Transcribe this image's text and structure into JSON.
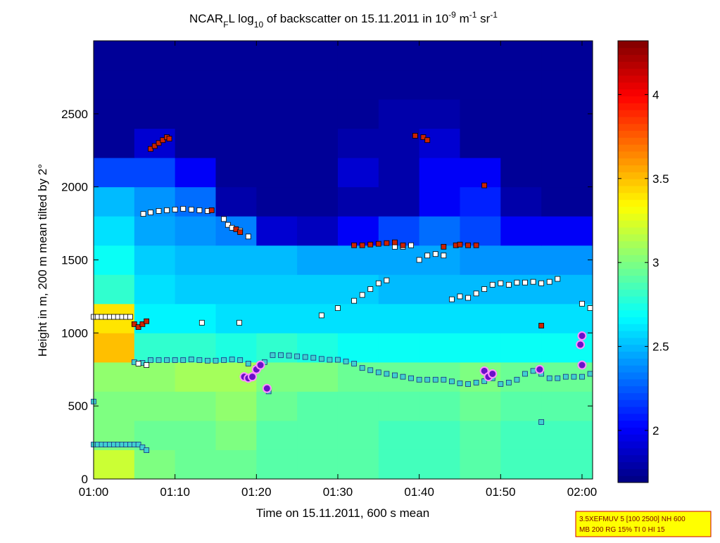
{
  "chart_data": {
    "type": "heatmap",
    "title": [
      "NCAR",
      "F",
      "L log",
      "10",
      " of backscatter on 15.11.2011 in 10",
      "-9",
      " m",
      "-1",
      " sr",
      "-1"
    ],
    "xlabel": "Time on 15.11.2011, 600 s mean",
    "ylabel": "Height in m, 200 m mean tilted by 2°",
    "xlim": [
      0,
      61.3
    ],
    "xticks": [
      {
        "value": 0,
        "label": "01:00"
      },
      {
        "value": 10,
        "label": "01:10"
      },
      {
        "value": 20,
        "label": "01:20"
      },
      {
        "value": 30,
        "label": "01:30"
      },
      {
        "value": 40,
        "label": "01:40"
      },
      {
        "value": 50,
        "label": "01:50"
      },
      {
        "value": 60,
        "label": "02:00"
      }
    ],
    "ylim": [
      0,
      3000
    ],
    "yticks": [
      0,
      500,
      1000,
      1500,
      2000,
      2500
    ],
    "clim": [
      1.69,
      4.32
    ],
    "cticks": [
      2,
      2.5,
      3,
      3.5,
      4
    ],
    "colormap": "jet",
    "x_edges": [
      0,
      5,
      10,
      15,
      20,
      25,
      30,
      35,
      40,
      45,
      50,
      55,
      61.3
    ],
    "y_edges": [
      0,
      200,
      400,
      600,
      800,
      1000,
      1200,
      1400,
      1600,
      1800,
      2000,
      2200,
      2400,
      2600,
      2800,
      3000
    ],
    "z": [
      [
        3.2,
        3.0,
        2.95,
        2.95,
        2.9,
        2.9,
        2.9,
        2.85,
        2.85,
        2.9,
        2.85,
        2.85
      ],
      [
        3.0,
        2.95,
        2.95,
        3.0,
        2.9,
        2.9,
        2.9,
        2.85,
        2.85,
        2.9,
        2.85,
        2.85
      ],
      [
        3.0,
        3.0,
        3.0,
        3.05,
        2.95,
        2.9,
        2.9,
        2.9,
        2.9,
        2.95,
        2.9,
        2.9
      ],
      [
        3.05,
        3.05,
        3.1,
        3.1,
        3.0,
        3.0,
        2.95,
        2.95,
        2.95,
        3.0,
        2.95,
        2.95
      ],
      [
        3.5,
        2.8,
        2.8,
        2.75,
        2.8,
        2.75,
        2.7,
        2.7,
        2.7,
        2.7,
        2.7,
        2.7
      ],
      [
        3.4,
        2.65,
        2.65,
        2.6,
        2.6,
        2.6,
        2.6,
        2.6,
        2.6,
        2.6,
        2.6,
        2.6
      ],
      [
        2.8,
        2.6,
        2.55,
        2.55,
        2.55,
        2.55,
        2.55,
        2.5,
        2.5,
        2.5,
        2.5,
        2.5
      ],
      [
        2.7,
        2.55,
        2.5,
        2.5,
        2.5,
        2.45,
        2.45,
        2.45,
        2.45,
        2.4,
        2.4,
        2.4
      ],
      [
        2.6,
        2.45,
        2.4,
        2.35,
        1.9,
        1.85,
        2.0,
        2.2,
        2.3,
        2.2,
        2.0,
        2.0
      ],
      [
        2.5,
        2.4,
        2.3,
        1.8,
        1.75,
        1.75,
        1.8,
        1.8,
        2.0,
        2.1,
        1.8,
        1.75
      ],
      [
        2.2,
        2.2,
        2.0,
        1.75,
        1.75,
        1.75,
        1.9,
        1.8,
        2.0,
        2.0,
        1.75,
        1.75
      ],
      [
        1.75,
        1.9,
        1.75,
        1.75,
        1.75,
        1.75,
        1.8,
        1.8,
        1.9,
        1.75,
        1.75,
        1.75
      ],
      [
        1.75,
        1.75,
        1.75,
        1.75,
        1.75,
        1.75,
        1.75,
        1.8,
        1.8,
        1.75,
        1.75,
        1.75
      ],
      [
        1.75,
        1.75,
        1.75,
        1.75,
        1.75,
        1.75,
        1.75,
        1.75,
        1.75,
        1.75,
        1.75,
        1.75
      ],
      [
        1.75,
        1.75,
        1.75,
        1.75,
        1.75,
        1.75,
        1.75,
        1.75,
        1.75,
        1.75,
        1.75,
        1.75
      ]
    ],
    "series": [
      {
        "marker": "square",
        "color": "#40d0d0",
        "edge": "#1a2a80",
        "x": [
          0,
          0.5,
          1,
          1.5,
          2,
          2.5,
          3,
          3.5,
          4,
          4.5,
          5,
          5.5,
          6,
          6.5,
          5,
          6,
          7,
          8,
          9,
          10,
          11,
          12,
          13,
          14,
          15,
          16,
          17,
          18,
          19,
          20,
          21,
          22,
          23,
          24,
          25,
          26,
          27,
          28,
          29,
          30,
          31,
          32,
          33,
          34,
          35,
          36,
          37,
          38,
          39,
          40,
          41,
          42,
          43,
          44,
          45,
          46,
          47,
          48,
          49,
          50,
          51,
          52,
          53,
          54,
          55,
          56,
          57,
          58,
          59,
          60,
          61,
          0,
          21.5,
          55
        ],
        "values": [
          236,
          236,
          236,
          236,
          236,
          236,
          236,
          236,
          236,
          236,
          236,
          236,
          217,
          197,
          800,
          795,
          814,
          814,
          814,
          814,
          814,
          819,
          814,
          810,
          810,
          814,
          819,
          814,
          790,
          760,
          800,
          848,
          848,
          845,
          840,
          835,
          830,
          822,
          816,
          816,
          805,
          790,
          760,
          745,
          730,
          720,
          710,
          700,
          690,
          680,
          680,
          680,
          680,
          668,
          655,
          650,
          660,
          670,
          690,
          650,
          660,
          680,
          720,
          740,
          720,
          690,
          690,
          700,
          700,
          700,
          720,
          530,
          600,
          390
        ]
      },
      {
        "marker": "square",
        "color": "#ffffff",
        "edge": "#000000",
        "x": [
          0,
          0.5,
          1,
          1.5,
          2,
          2.5,
          3,
          3.5,
          4,
          4.5,
          5.5,
          6.5,
          6.1,
          7,
          8,
          9,
          10,
          11,
          12,
          13,
          14,
          16,
          16.5,
          17,
          18,
          19,
          13.3,
          17.9,
          28,
          30,
          32,
          33,
          34,
          35,
          36,
          37,
          38,
          39,
          40,
          41,
          42,
          43,
          44,
          45,
          46,
          47,
          48,
          49,
          50,
          51,
          52,
          53,
          54,
          55,
          56,
          57,
          60,
          61
        ],
        "values": [
          1110,
          1110,
          1110,
          1110,
          1110,
          1110,
          1110,
          1110,
          1110,
          1110,
          790,
          780,
          1815,
          1825,
          1835,
          1840,
          1845,
          1850,
          1845,
          1840,
          1835,
          1780,
          1740,
          1720,
          1700,
          1660,
          1070,
          1070,
          1120,
          1170,
          1220,
          1260,
          1300,
          1340,
          1360,
          1590,
          1590,
          1600,
          1500,
          1530,
          1540,
          1530,
          1230,
          1250,
          1240,
          1270,
          1300,
          1330,
          1340,
          1330,
          1345,
          1345,
          1350,
          1340,
          1350,
          1370,
          1200,
          1170
        ]
      },
      {
        "marker": "square",
        "color": "#cc2200",
        "edge": "#000000",
        "x": [
          5,
          5.5,
          6,
          6.5,
          7,
          7.5,
          8,
          8.5,
          9,
          9.3,
          14.5,
          17.5,
          18,
          32,
          33,
          34,
          35,
          36,
          37,
          38,
          39.5,
          40.5,
          41,
          43,
          44.5,
          45,
          46,
          47,
          48,
          55
        ],
        "values": [
          1060,
          1040,
          1060,
          1080,
          2260,
          2280,
          2300,
          2320,
          2340,
          2330,
          1840,
          1710,
          1690,
          1600,
          1600,
          1605,
          1610,
          1615,
          1620,
          1600,
          2350,
          2340,
          2320,
          1590,
          1600,
          1605,
          1600,
          1600,
          2010,
          1050
        ]
      },
      {
        "marker": "circle",
        "color": "#6a10c8",
        "edge": "#ff90ff",
        "x": [
          18.5,
          19,
          19.5,
          20,
          20.5,
          21.3,
          48,
          48.5,
          49,
          54.8,
          59.8,
          60,
          60
        ],
        "values": [
          700,
          690,
          700,
          750,
          780,
          620,
          740,
          700,
          720,
          750,
          920,
          980,
          780
        ]
      }
    ],
    "annotation": [
      "3.5XEFMUV 5 [100 2500] NH 600",
      "MB 200 RG 15% TI 0 HI 15"
    ]
  }
}
